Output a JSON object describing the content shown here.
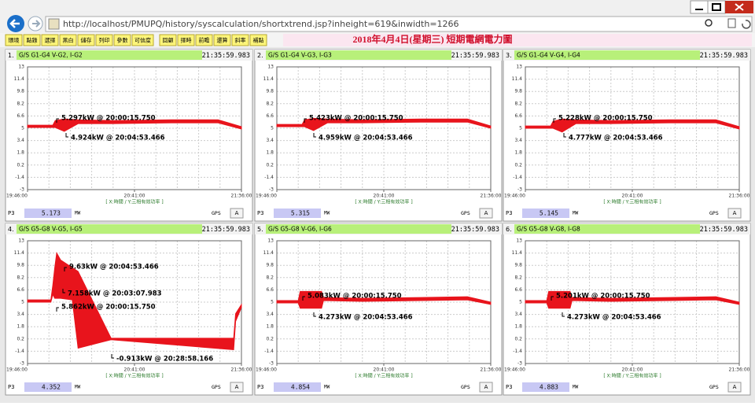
{
  "browser": {
    "url": "http://localhost/PMUPQ/history/syscalculation/shortxtrend.jsp?inheight=619&inwidth=1266"
  },
  "toolbar": {
    "buttons": [
      "環境",
      "點錄",
      "選擇",
      "黑白",
      "儲存",
      "列印",
      "參數",
      "可信度",
      "回顧",
      "擇時",
      "前瞻",
      "還算",
      "斜率",
      "補點"
    ],
    "title": "2018年4月4日(星期三) 短期電網電力圖"
  },
  "axes": {
    "ylim": [
      -3,
      13
    ],
    "yticks": [
      13,
      11.4,
      9.8,
      8.2,
      6.6,
      5,
      3.4,
      1.8,
      0.2,
      -1.4,
      -3
    ],
    "xticks": [
      "19:46:00",
      "20:41:00",
      "21:36:00"
    ],
    "caption": "[ X:時間 / Y:三相有效功率 ]",
    "phase": "P3",
    "unit": "MW",
    "gps": "GPS",
    "gps_state": "A"
  },
  "panels": [
    {
      "number": "1.",
      "name": "G/S G1-G4 V-G2, I-G2",
      "time": "21:35:59.983",
      "value": 5.173,
      "annotations": [
        "5.297kW @ 20:00:15.750",
        "4.924kW @ 20:04:53.466"
      ],
      "trace": {
        "x": [
          "19:46:00",
          "19:59:00",
          "20:00:15",
          "20:04:53",
          "20:12:00",
          "20:30:00",
          "21:00:00",
          "21:24:00",
          "21:36:00"
        ],
        "high": [
          5.4,
          5.4,
          6.0,
          6.2,
          6.1,
          6.0,
          6.1,
          6.1,
          5.2
        ],
        "low": [
          5.1,
          5.1,
          5.1,
          4.6,
          5.6,
          5.6,
          5.7,
          5.7,
          4.9
        ]
      }
    },
    {
      "number": "2.",
      "name": "G/S G1-G4 V-G3, I-G3",
      "time": "21:35:59.983",
      "value": 5.315,
      "annotations": [
        "5.423kW @ 20:00:15.750",
        "4.959kW @ 20:04:53.466"
      ],
      "trace": {
        "x": [
          "19:46:00",
          "19:59:00",
          "20:00:15",
          "20:04:53",
          "20:12:00",
          "20:30:00",
          "21:00:00",
          "21:24:00",
          "21:36:00"
        ],
        "high": [
          5.5,
          5.5,
          6.1,
          6.3,
          6.2,
          6.1,
          6.2,
          6.2,
          5.3
        ],
        "low": [
          5.2,
          5.2,
          5.2,
          4.7,
          5.7,
          5.7,
          5.8,
          5.8,
          5.0
        ]
      }
    },
    {
      "number": "3.",
      "name": "G/S G1-G4 V-G4, I-G4",
      "time": "21:35:59.983",
      "value": 5.145,
      "annotations": [
        "5.228kW @ 20:00:15.750",
        "4.777kW @ 20:04:53.466"
      ],
      "trace": {
        "x": [
          "19:46:00",
          "19:59:00",
          "20:00:15",
          "20:04:53",
          "20:12:00",
          "20:30:00",
          "21:00:00",
          "21:24:00",
          "21:36:00"
        ],
        "high": [
          5.3,
          5.3,
          5.9,
          6.2,
          6.1,
          6.0,
          6.1,
          6.1,
          5.2
        ],
        "low": [
          5.0,
          5.0,
          5.0,
          4.5,
          5.6,
          5.6,
          5.7,
          5.7,
          4.9
        ]
      }
    },
    {
      "number": "4.",
      "name": "G/S G5-G8 V-G5, I-G5",
      "time": "21:35:59.983",
      "value": 4.352,
      "annotations": [
        "9.63kW @ 20:04:53.466",
        "7.158kW @ 20:03:07.983",
        "5.862kW @ 20:00:15.750",
        "-0.913kW @ 20:28:58.166"
      ],
      "trace": {
        "x": [
          "19:46:00",
          "19:58:00",
          "19:59:00",
          "20:00:00",
          "20:01:00",
          "20:03:00",
          "20:09:00",
          "20:12:00",
          "20:28:58",
          "21:32:00",
          "21:33:00",
          "21:36:00"
        ],
        "high": [
          5.3,
          5.3,
          7.2,
          9.5,
          11.4,
          10.5,
          9.5,
          9.0,
          0.3,
          0.3,
          3.5,
          4.7
        ],
        "low": [
          5.0,
          5.0,
          6.0,
          5.5,
          5.5,
          5.5,
          5.3,
          -1.0,
          0.1,
          -1.2,
          2.5,
          4.3
        ]
      }
    },
    {
      "number": "5.",
      "name": "G/S G5-G8 V-G6, I-G6",
      "time": "21:35:59.983",
      "value": 4.854,
      "annotations": [
        "5.083kW @ 20:00:15.750",
        "4.273kW @ 20:04:53.466"
      ],
      "trace": {
        "x": [
          "19:46:00",
          "19:57:00",
          "19:58:00",
          "20:09:00",
          "20:10:00",
          "20:30:00",
          "21:00:00",
          "21:24:00",
          "21:36:00"
        ],
        "high": [
          5.2,
          5.2,
          6.4,
          6.4,
          5.6,
          5.5,
          5.6,
          5.7,
          5.0
        ],
        "low": [
          4.9,
          4.9,
          4.2,
          4.2,
          5.2,
          5.1,
          5.2,
          5.3,
          4.7
        ]
      }
    },
    {
      "number": "6.",
      "name": "G/S G5-G8 V-G8, I-G8",
      "time": "21:35:59.983",
      "value": 4.883,
      "annotations": [
        "5.201kW @ 20:00:15.750",
        "4.273kW @ 20:04:53.466"
      ],
      "trace": {
        "x": [
          "19:46:00",
          "19:57:00",
          "19:58:00",
          "20:09:00",
          "20:10:00",
          "20:30:00",
          "21:00:00",
          "21:24:00",
          "21:36:00"
        ],
        "high": [
          5.2,
          5.2,
          6.4,
          6.4,
          5.6,
          5.5,
          5.6,
          5.7,
          5.0
        ],
        "low": [
          4.9,
          4.9,
          4.2,
          4.2,
          5.2,
          5.1,
          5.2,
          5.3,
          4.7
        ]
      }
    }
  ]
}
